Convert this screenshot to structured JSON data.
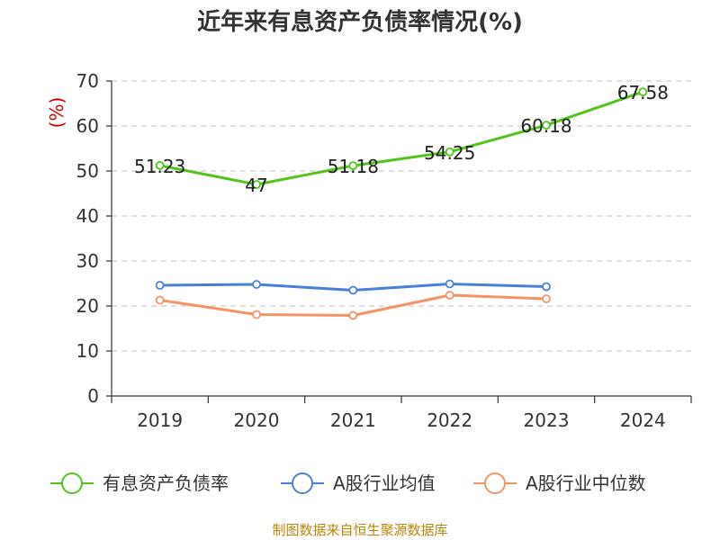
{
  "chart_data": {
    "type": "line",
    "title": "近年来有息资产负债率情况(%)",
    "ylabel": "(%)",
    "xlabel": "",
    "categories": [
      "2019",
      "2020",
      "2021",
      "2022",
      "2023",
      "2024"
    ],
    "ylim": [
      0,
      70
    ],
    "yticks": [
      0,
      10,
      20,
      30,
      40,
      50,
      60,
      70
    ],
    "grid": true,
    "legend": "bottom",
    "series": [
      {
        "name": "有息资产负债率",
        "color": "#52c41a",
        "values": [
          51.23,
          47,
          51.18,
          54.25,
          60.18,
          67.58
        ],
        "labels": [
          "51.23",
          "47",
          "51.18",
          "54.25",
          "60.18",
          "67.58"
        ]
      },
      {
        "name": "A股行业均值",
        "color": "#4a7fdb",
        "values": [
          24.6,
          24.8,
          23.5,
          24.9,
          24.3,
          null
        ]
      },
      {
        "name": "A股行业中位数",
        "color": "#f49366",
        "values": [
          21.3,
          18.1,
          17.9,
          22.4,
          21.6,
          null
        ]
      }
    ]
  },
  "source": "制图数据来自恒生聚源数据库"
}
